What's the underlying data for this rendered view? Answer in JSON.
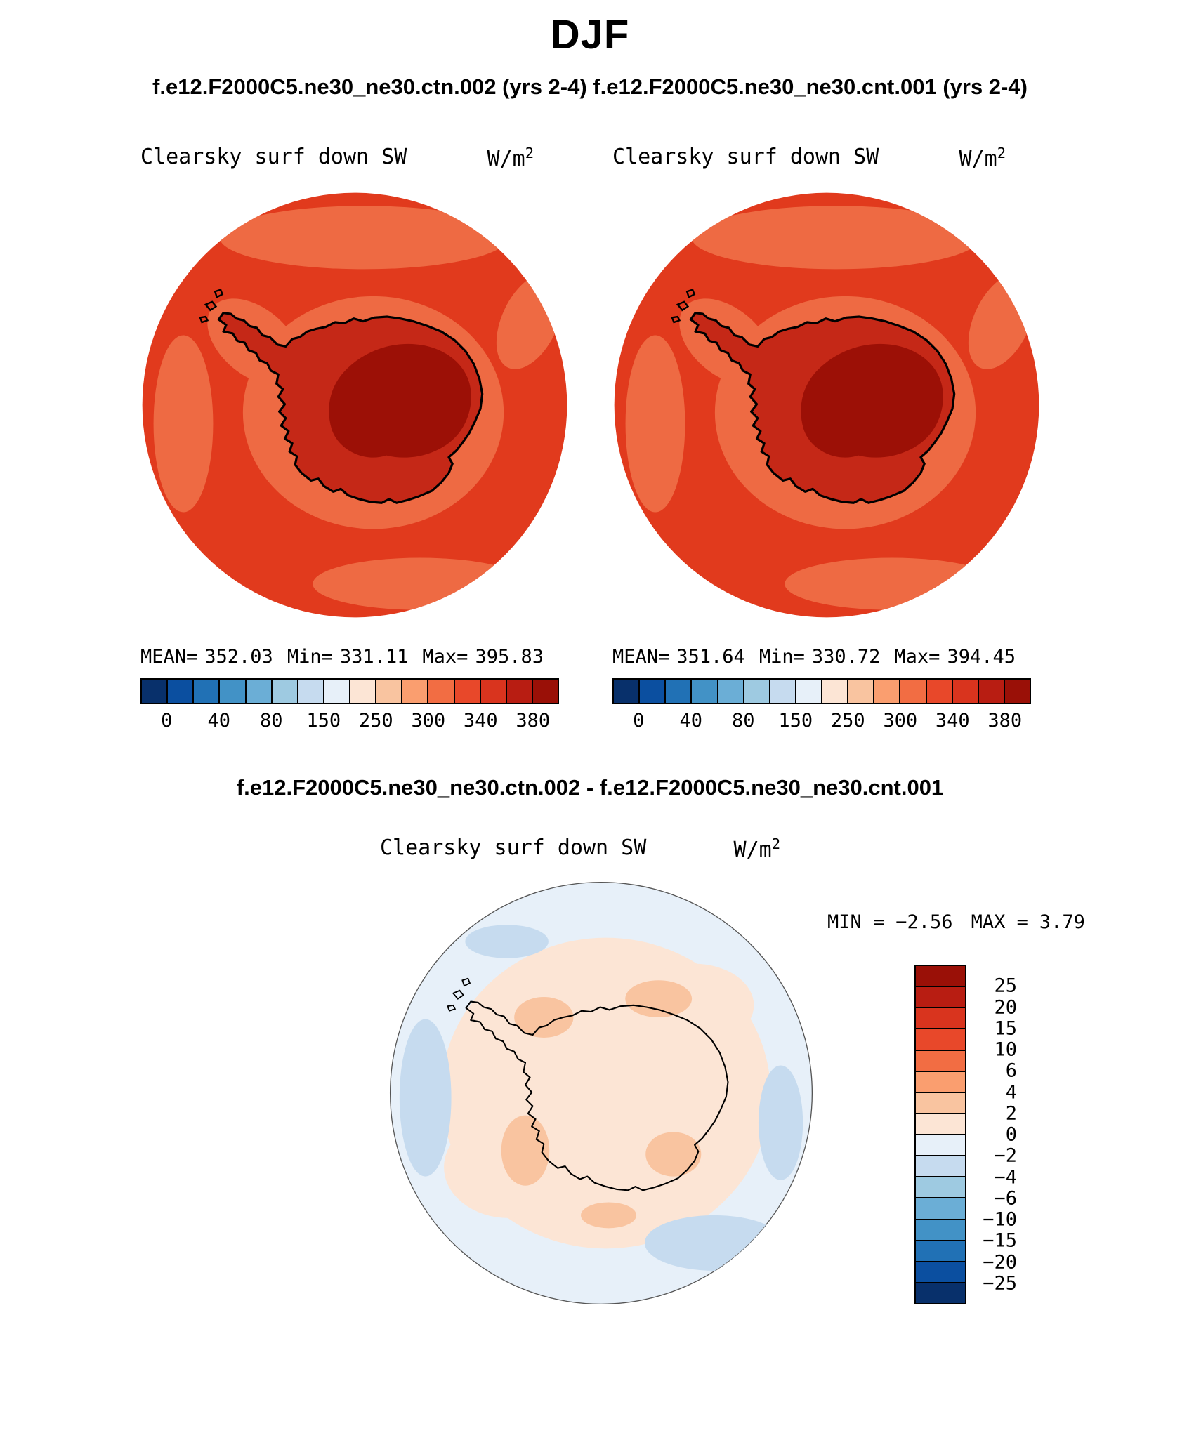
{
  "title": "DJF",
  "subtitle": "f.e12.F2000C5.ne30_ne30.ctn.002 (yrs 2-4) f.e12.F2000C5.ne30_ne30.cnt.001 (yrs 2-4)",
  "colors": {
    "ocean_red": "#e13a1d",
    "coast_halo_salmon": "#ee6a43",
    "continent_red": "#c52817",
    "interior_dark_red": "#9c1006",
    "diff_ocean_pale_blue": "#e7f0f9",
    "diff_pale_pink": "#fce5d5",
    "diff_deep_pink": "#f9c4a0",
    "diff_blue_patch": "#c6dbef"
  },
  "panels": [
    {
      "id": "case1",
      "var_label": "Clearsky surf down SW",
      "units": "W/m",
      "units_exp": "2",
      "stats": {
        "mean_label": "MEAN=",
        "mean": "352.03",
        "min_label": "Min=",
        "min": "331.11",
        "max_label": "Max=",
        "max": "395.83"
      },
      "colorbar": {
        "colors": [
          "#08306b",
          "#0b4fa0",
          "#2171b5",
          "#4292c6",
          "#6baed6",
          "#9ecae1",
          "#c6dbef",
          "#e7f0f9",
          "#fce5d5",
          "#f9c4a0",
          "#fa9e6f",
          "#f26d43",
          "#e8482a",
          "#d9341e",
          "#b81d12",
          "#9a1007"
        ],
        "ticks": [
          "0",
          "40",
          "80",
          "150",
          "250",
          "300",
          "340",
          "380"
        ]
      }
    },
    {
      "id": "case2",
      "var_label": "Clearsky surf down SW",
      "units": "W/m",
      "units_exp": "2",
      "stats": {
        "mean_label": "MEAN=",
        "mean": "351.64",
        "min_label": "Min=",
        "min": "330.72",
        "max_label": "Max=",
        "max": "394.45"
      },
      "colorbar": {
        "colors": [
          "#08306b",
          "#0b4fa0",
          "#2171b5",
          "#4292c6",
          "#6baed6",
          "#9ecae1",
          "#c6dbef",
          "#e7f0f9",
          "#fce5d5",
          "#f9c4a0",
          "#fa9e6f",
          "#f26d43",
          "#e8482a",
          "#d9341e",
          "#b81d12",
          "#9a1007"
        ],
        "ticks": [
          "0",
          "40",
          "80",
          "150",
          "250",
          "300",
          "340",
          "380"
        ]
      }
    }
  ],
  "diff": {
    "title": "f.e12.F2000C5.ne30_ne30.ctn.002 - f.e12.F2000C5.ne30_ne30.cnt.001",
    "var_label": "Clearsky surf down SW",
    "units": "W/m",
    "units_exp": "2",
    "stats": {
      "min_label": "MIN =",
      "min": "−2.56",
      "max_label": "MAX =",
      "max": "3.79"
    },
    "colorbar": {
      "colors": [
        "#9a1007",
        "#b81d12",
        "#d9341e",
        "#e8482a",
        "#f26d43",
        "#fa9e6f",
        "#f9c4a0",
        "#fce5d5",
        "#e7f0f9",
        "#c6dbef",
        "#9ecae1",
        "#6baed6",
        "#4292c6",
        "#2171b5",
        "#0b4fa0",
        "#08306b"
      ],
      "labels": [
        "25",
        "20",
        "15",
        "10",
        "6",
        "4",
        "2",
        "0",
        "−2",
        "−4",
        "−6",
        "−10",
        "−15",
        "−20",
        "−25"
      ]
    }
  },
  "chart_data": [
    {
      "type": "heatmap",
      "subtype": "south-polar-stereographic-map",
      "season": "DJF",
      "title": "Clearsky surf down SW — f.e12.F2000C5.ne30_ne30.ctn.002 (yrs 2-4)",
      "units": "W/m²",
      "stats": {
        "mean": 352.03,
        "min": 331.11,
        "max": 395.83
      },
      "colorbar_ticks": [
        0,
        40,
        80,
        150,
        250,
        300,
        340,
        380
      ],
      "legend_position": "bottom",
      "notes": "Antarctic interior darkest red (>380 W/m²), ring of dark red 360-380, surrounding ocean bright red ~340-360 with salmon patches ~300-340 near coast and map rim"
    },
    {
      "type": "heatmap",
      "subtype": "south-polar-stereographic-map",
      "season": "DJF",
      "title": "Clearsky surf down SW — f.e12.F2000C5.ne30_ne30.cnt.001 (yrs 2-4)",
      "units": "W/m²",
      "stats": {
        "mean": 351.64,
        "min": 330.72,
        "max": 394.45
      },
      "colorbar_ticks": [
        0,
        40,
        80,
        150,
        250,
        300,
        340,
        380
      ],
      "legend_position": "bottom",
      "notes": "Nearly identical spatial pattern to ctn.002 panel"
    },
    {
      "type": "heatmap",
      "subtype": "south-polar-stereographic-map",
      "season": "DJF",
      "title": "Clearsky surf down SW — difference (ctn.002 − cnt.001)",
      "units": "W/m²",
      "stats": {
        "min": -2.56,
        "max": 3.79
      },
      "colorbar_ticks": [
        25,
        20,
        15,
        10,
        6,
        4,
        2,
        0,
        -2,
        -4,
        -6,
        -10,
        -15,
        -20,
        -25
      ],
      "legend_position": "right",
      "notes": "Mostly near-zero: pale pink (0 to +2) over and around the continent with a few +2 to +4 patches; pale blue ocean (0 to −2) with a few −2 to −4 patches"
    }
  ]
}
